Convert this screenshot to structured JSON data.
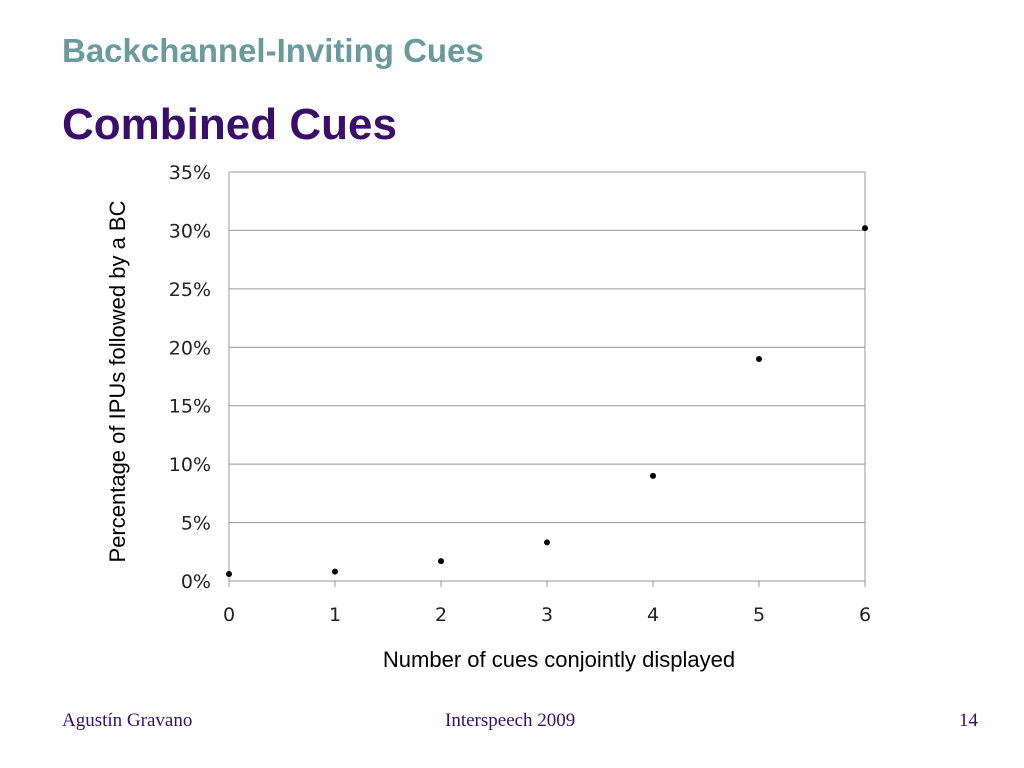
{
  "header": {
    "section_title": "Backchannel-Inviting Cues",
    "slide_title": "Combined Cues"
  },
  "chart_data": {
    "type": "scatter",
    "x": [
      0,
      1,
      2,
      3,
      4,
      5,
      6
    ],
    "y": [
      0.6,
      0.8,
      1.7,
      3.3,
      9.0,
      19.0,
      30.2
    ],
    "xlabel": "Number of cues conjointly displayed",
    "ylabel": "Percentage of IPUs followed by a BC",
    "xlim": [
      0,
      6
    ],
    "ylim": [
      0,
      35
    ],
    "x_ticks": [
      "0",
      "1",
      "2",
      "3",
      "4",
      "5",
      "6"
    ],
    "y_ticks": [
      "0%",
      "5%",
      "10%",
      "15%",
      "20%",
      "25%",
      "30%",
      "35%"
    ],
    "grid": "horizontal",
    "legend": "none",
    "marker_color": "#000000",
    "grid_color": "#999999"
  },
  "footer": {
    "author": "Agustín Gravano",
    "venue": "Interspeech 2009",
    "page_number": "14"
  }
}
